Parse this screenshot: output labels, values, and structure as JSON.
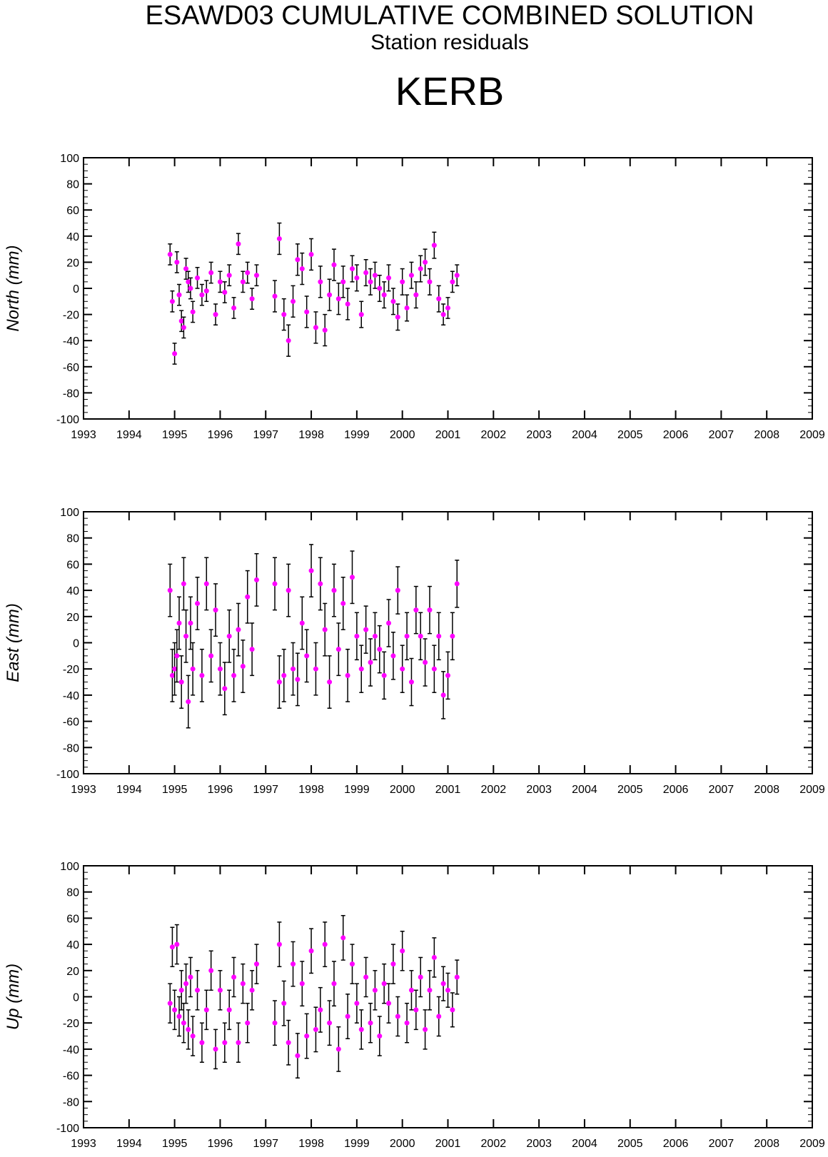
{
  "titles": {
    "main": "ESAWD03 CUMULATIVE COMBINED SOLUTION",
    "sub": "Station residuals",
    "station": "KERB"
  },
  "colors": {
    "points": "#ff00ff",
    "error_bars": "#000000",
    "axes": "#000000"
  },
  "chart_data": [
    {
      "type": "scatter",
      "ylabel": "North (mm)",
      "xlim": [
        1993,
        2009
      ],
      "ylim": [
        -100,
        100
      ],
      "x_ticks": [
        1993,
        1994,
        1995,
        1996,
        1997,
        1998,
        1999,
        2000,
        2001,
        2002,
        2003,
        2004,
        2005,
        2006,
        2007,
        2008,
        2009
      ],
      "y_ticks": [
        -100,
        -80,
        -60,
        -40,
        -20,
        0,
        20,
        40,
        60,
        80,
        100
      ],
      "grid": false,
      "series": [
        {
          "x": [
            1994.9,
            1994.95,
            1995.0,
            1995.05,
            1995.1,
            1995.15,
            1995.2,
            1995.25,
            1995.3,
            1995.35,
            1995.4,
            1995.5,
            1995.6,
            1995.7,
            1995.8,
            1995.9,
            1996.0,
            1996.1,
            1996.2,
            1996.3,
            1996.4,
            1996.5,
            1996.6,
            1996.7,
            1996.8,
            1997.2,
            1997.3,
            1997.4,
            1997.5,
            1997.6,
            1997.7,
            1997.8,
            1997.9,
            1998.0,
            1998.1,
            1998.2,
            1998.3,
            1998.4,
            1998.5,
            1998.6,
            1998.7,
            1998.8,
            1998.9,
            1999.0,
            1999.1,
            1999.2,
            1999.3,
            1999.4,
            1999.5,
            1999.6,
            1999.7,
            1999.8,
            1999.9,
            2000.0,
            2000.1,
            2000.2,
            2000.3,
            2000.4,
            2000.5,
            2000.6,
            2000.7,
            2000.8,
            2000.9,
            2001.0,
            2001.1,
            2001.2
          ],
          "y": [
            26,
            -10,
            -50,
            20,
            -5,
            -25,
            -30,
            15,
            5,
            0,
            -18,
            8,
            -5,
            -2,
            12,
            -20,
            5,
            -3,
            10,
            -15,
            34,
            5,
            12,
            -8,
            10,
            -6,
            38,
            -20,
            -40,
            -10,
            22,
            15,
            -18,
            26,
            -30,
            5,
            -32,
            -5,
            18,
            -8,
            5,
            -12,
            15,
            8,
            -20,
            12,
            5,
            10,
            0,
            -5,
            8,
            -10,
            -22,
            5,
            -15,
            10,
            -5,
            15,
            20,
            5,
            33,
            -8,
            -20,
            -15,
            5,
            10
          ],
          "err": [
            8,
            8,
            8,
            8,
            8,
            8,
            8,
            8,
            8,
            8,
            8,
            8,
            8,
            8,
            8,
            8,
            8,
            8,
            8,
            8,
            8,
            8,
            8,
            8,
            8,
            12,
            12,
            12,
            12,
            12,
            12,
            12,
            12,
            12,
            12,
            12,
            12,
            12,
            12,
            12,
            12,
            12,
            10,
            10,
            10,
            10,
            10,
            10,
            10,
            10,
            10,
            10,
            10,
            10,
            10,
            10,
            10,
            10,
            10,
            10,
            10,
            10,
            8,
            8,
            8,
            8
          ]
        }
      ]
    },
    {
      "type": "scatter",
      "ylabel": "East (mm)",
      "xlim": [
        1993,
        2009
      ],
      "ylim": [
        -100,
        100
      ],
      "x_ticks": [
        1993,
        1994,
        1995,
        1996,
        1997,
        1998,
        1999,
        2000,
        2001,
        2002,
        2003,
        2004,
        2005,
        2006,
        2007,
        2008,
        2009
      ],
      "y_ticks": [
        -100,
        -80,
        -60,
        -40,
        -20,
        0,
        20,
        40,
        60,
        80,
        100
      ],
      "grid": false,
      "series": [
        {
          "x": [
            1994.9,
            1994.95,
            1995.0,
            1995.05,
            1995.1,
            1995.15,
            1995.2,
            1995.25,
            1995.3,
            1995.35,
            1995.4,
            1995.5,
            1995.6,
            1995.7,
            1995.8,
            1995.9,
            1996.0,
            1996.1,
            1996.2,
            1996.3,
            1996.4,
            1996.5,
            1996.6,
            1996.7,
            1996.8,
            1997.2,
            1997.3,
            1997.4,
            1997.5,
            1997.6,
            1997.7,
            1997.8,
            1997.9,
            1998.0,
            1998.1,
            1998.2,
            1998.3,
            1998.4,
            1998.5,
            1998.6,
            1998.7,
            1998.8,
            1998.9,
            1999.0,
            1999.1,
            1999.2,
            1999.3,
            1999.4,
            1999.5,
            1999.6,
            1999.7,
            1999.8,
            1999.9,
            2000.0,
            2000.1,
            2000.2,
            2000.3,
            2000.4,
            2000.5,
            2000.6,
            2000.7,
            2000.8,
            2000.9,
            2001.0,
            2001.1,
            2001.2
          ],
          "y": [
            40,
            -25,
            -20,
            -10,
            15,
            -30,
            45,
            5,
            -45,
            15,
            -20,
            30,
            -25,
            45,
            -10,
            25,
            -20,
            -35,
            5,
            -25,
            10,
            -18,
            35,
            -5,
            48,
            45,
            -30,
            -25,
            40,
            -20,
            -28,
            15,
            -10,
            55,
            -20,
            45,
            10,
            -30,
            40,
            -5,
            30,
            -25,
            50,
            5,
            -20,
            10,
            -15,
            5,
            -5,
            -25,
            15,
            -10,
            40,
            -20,
            5,
            -30,
            25,
            5,
            -15,
            25,
            -20,
            5,
            -40,
            -25,
            5,
            45
          ],
          "err": [
            20,
            20,
            20,
            20,
            20,
            20,
            20,
            20,
            20,
            20,
            20,
            20,
            20,
            20,
            20,
            20,
            20,
            20,
            20,
            20,
            20,
            20,
            20,
            20,
            20,
            20,
            20,
            20,
            20,
            20,
            20,
            20,
            20,
            20,
            20,
            20,
            20,
            20,
            20,
            20,
            20,
            20,
            20,
            18,
            18,
            18,
            18,
            18,
            18,
            18,
            18,
            18,
            18,
            18,
            18,
            18,
            18,
            18,
            18,
            18,
            18,
            18,
            18,
            18,
            18,
            18
          ]
        }
      ]
    },
    {
      "type": "scatter",
      "ylabel": "Up (mm)",
      "xlim": [
        1993,
        2009
      ],
      "ylim": [
        -100,
        100
      ],
      "x_ticks": [
        1993,
        1994,
        1995,
        1996,
        1997,
        1998,
        1999,
        2000,
        2001,
        2002,
        2003,
        2004,
        2005,
        2006,
        2007,
        2008,
        2009
      ],
      "y_ticks": [
        -100,
        -80,
        -60,
        -40,
        -20,
        0,
        20,
        40,
        60,
        80,
        100
      ],
      "grid": false,
      "series": [
        {
          "x": [
            1994.9,
            1994.95,
            1995.0,
            1995.05,
            1995.1,
            1995.15,
            1995.2,
            1995.25,
            1995.3,
            1995.35,
            1995.4,
            1995.5,
            1995.6,
            1995.7,
            1995.8,
            1995.9,
            1996.0,
            1996.1,
            1996.2,
            1996.3,
            1996.4,
            1996.5,
            1996.6,
            1996.7,
            1996.8,
            1997.2,
            1997.3,
            1997.4,
            1997.5,
            1997.6,
            1997.7,
            1997.8,
            1997.9,
            1998.0,
            1998.1,
            1998.2,
            1998.3,
            1998.4,
            1998.5,
            1998.6,
            1998.7,
            1998.8,
            1998.9,
            1999.0,
            1999.1,
            1999.2,
            1999.3,
            1999.4,
            1999.5,
            1999.6,
            1999.7,
            1999.8,
            1999.9,
            2000.0,
            2000.1,
            2000.2,
            2000.3,
            2000.4,
            2000.5,
            2000.6,
            2000.7,
            2000.8,
            2000.9,
            2001.0,
            2001.1,
            2001.2
          ],
          "y": [
            -5,
            38,
            -10,
            40,
            -15,
            5,
            -20,
            10,
            -25,
            15,
            -30,
            5,
            -35,
            -10,
            20,
            -40,
            5,
            -35,
            -10,
            15,
            -35,
            10,
            -20,
            5,
            25,
            -20,
            40,
            -5,
            -35,
            25,
            -45,
            10,
            -30,
            35,
            -25,
            -10,
            40,
            -20,
            10,
            -40,
            45,
            -15,
            25,
            -5,
            -25,
            15,
            -20,
            5,
            -30,
            10,
            -5,
            25,
            -15,
            35,
            -20,
            5,
            -10,
            15,
            -25,
            5,
            30,
            -15,
            10,
            5,
            -10,
            15
          ],
          "err": [
            15,
            15,
            15,
            15,
            15,
            15,
            15,
            15,
            15,
            15,
            15,
            15,
            15,
            15,
            15,
            15,
            15,
            15,
            15,
            15,
            15,
            15,
            15,
            15,
            15,
            17,
            17,
            17,
            17,
            17,
            17,
            17,
            17,
            17,
            17,
            17,
            17,
            17,
            17,
            17,
            17,
            17,
            15,
            15,
            15,
            15,
            15,
            15,
            15,
            15,
            15,
            15,
            15,
            15,
            15,
            15,
            15,
            15,
            15,
            15,
            15,
            15,
            13,
            13,
            13,
            13
          ]
        }
      ]
    }
  ]
}
